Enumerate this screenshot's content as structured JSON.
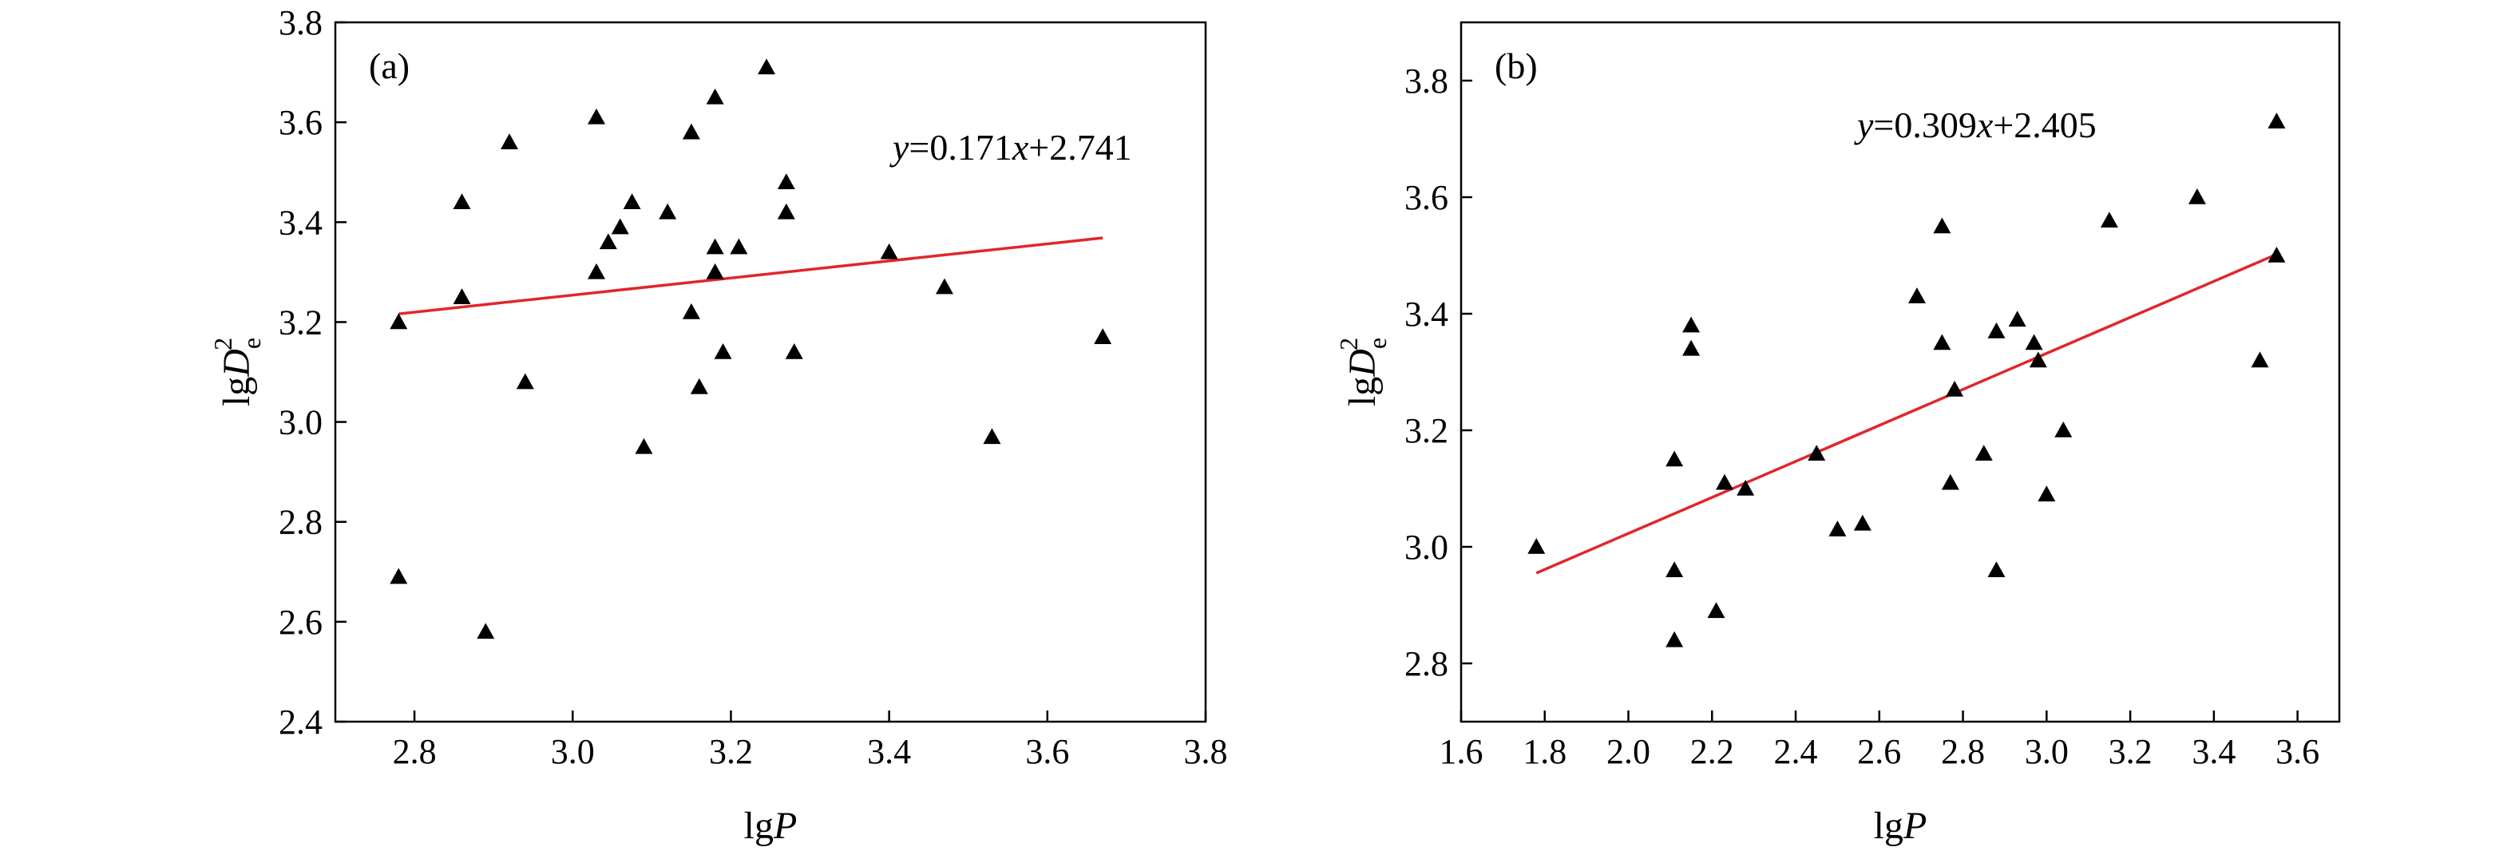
{
  "chart_data": [
    {
      "type": "scatter",
      "panel_label": "(a)",
      "xlabel_main": "lg",
      "xlabel_var": "P",
      "ylabel_main": "lg",
      "ylabel_var": "D",
      "ylabel_sub": "e",
      "ylabel_sup": "2",
      "equation": {
        "y": "y",
        "rest1": "=0.171",
        "x": "x",
        "rest2": "+2.741"
      },
      "xlim": [
        2.7,
        3.8
      ],
      "ylim": [
        2.4,
        3.8
      ],
      "xticks": [
        2.8,
        3.0,
        3.2,
        3.4,
        3.6,
        3.8
      ],
      "yticks": [
        2.4,
        2.6,
        2.8,
        3.0,
        3.2,
        3.4,
        3.6,
        3.8
      ],
      "xtick_labels": [
        "2.8",
        "3.0",
        "3.2",
        "3.4",
        "3.6",
        "3.8"
      ],
      "ytick_labels": [
        "2.4",
        "2.6",
        "2.8",
        "3.0",
        "3.2",
        "3.4",
        "3.6",
        "3.8"
      ],
      "fit": {
        "slope": 0.171,
        "intercept": 2.741,
        "x_range": [
          2.78,
          3.67
        ],
        "color": "#e0262c"
      },
      "marker_color": "#000000",
      "points": [
        [
          2.78,
          3.2
        ],
        [
          2.78,
          2.69
        ],
        [
          2.86,
          3.44
        ],
        [
          2.86,
          3.25
        ],
        [
          2.89,
          2.58
        ],
        [
          2.92,
          3.56
        ],
        [
          2.94,
          3.08
        ],
        [
          3.03,
          3.61
        ],
        [
          3.03,
          3.3
        ],
        [
          3.045,
          3.36
        ],
        [
          3.06,
          3.39
        ],
        [
          3.075,
          3.44
        ],
        [
          3.09,
          2.95
        ],
        [
          3.12,
          3.42
        ],
        [
          3.15,
          3.58
        ],
        [
          3.15,
          3.22
        ],
        [
          3.16,
          3.07
        ],
        [
          3.18,
          3.65
        ],
        [
          3.18,
          3.35
        ],
        [
          3.18,
          3.3
        ],
        [
          3.19,
          3.14
        ],
        [
          3.21,
          3.35
        ],
        [
          3.245,
          3.71
        ],
        [
          3.27,
          3.48
        ],
        [
          3.27,
          3.42
        ],
        [
          3.28,
          3.14
        ],
        [
          3.4,
          3.34
        ],
        [
          3.47,
          3.27
        ],
        [
          3.53,
          2.97
        ],
        [
          3.67,
          3.17
        ]
      ]
    },
    {
      "type": "scatter",
      "panel_label": "(b)",
      "xlabel_main": "lg",
      "xlabel_var": "P",
      "ylabel_main": "lg",
      "ylabel_var": "D",
      "ylabel_sub": "e",
      "ylabel_sup": "2",
      "equation": {
        "y": "y",
        "rest1": "=0.309",
        "x": "x",
        "rest2": "+2.405"
      },
      "xlim": [
        1.6,
        3.7
      ],
      "ylim": [
        2.7,
        3.9
      ],
      "xticks": [
        1.6,
        1.8,
        2.0,
        2.2,
        2.4,
        2.6,
        2.8,
        3.0,
        3.2,
        3.4,
        3.6
      ],
      "yticks": [
        2.8,
        3.0,
        3.2,
        3.4,
        3.6,
        3.8
      ],
      "xtick_labels": [
        "1.6",
        "1.8",
        "2.0",
        "2.2",
        "2.4",
        "2.6",
        "2.8",
        "3.0",
        "3.2",
        "3.4",
        "3.6"
      ],
      "ytick_labels": [
        "2.8",
        "3.0",
        "3.2",
        "3.4",
        "3.6",
        "3.8"
      ],
      "fit": {
        "slope": 0.309,
        "intercept": 2.405,
        "x_range": [
          1.78,
          3.55
        ],
        "color": "#e0262c"
      },
      "marker_color": "#000000",
      "points": [
        [
          1.78,
          3.0
        ],
        [
          2.11,
          3.15
        ],
        [
          2.11,
          2.96
        ],
        [
          2.11,
          2.84
        ],
        [
          2.15,
          3.38
        ],
        [
          2.15,
          3.34
        ],
        [
          2.21,
          2.89
        ],
        [
          2.23,
          3.11
        ],
        [
          2.28,
          3.1
        ],
        [
          2.45,
          3.16
        ],
        [
          2.5,
          3.03
        ],
        [
          2.56,
          3.04
        ],
        [
          2.69,
          3.43
        ],
        [
          2.75,
          3.55
        ],
        [
          2.75,
          3.35
        ],
        [
          2.77,
          3.11
        ],
        [
          2.78,
          3.27
        ],
        [
          2.85,
          3.16
        ],
        [
          2.88,
          3.37
        ],
        [
          2.88,
          2.96
        ],
        [
          2.93,
          3.39
        ],
        [
          2.97,
          3.35
        ],
        [
          2.98,
          3.32
        ],
        [
          3.0,
          3.09
        ],
        [
          3.04,
          3.2
        ],
        [
          3.15,
          3.56
        ],
        [
          3.36,
          3.6
        ],
        [
          3.51,
          3.32
        ],
        [
          3.55,
          3.73
        ],
        [
          3.55,
          3.5
        ]
      ]
    }
  ]
}
